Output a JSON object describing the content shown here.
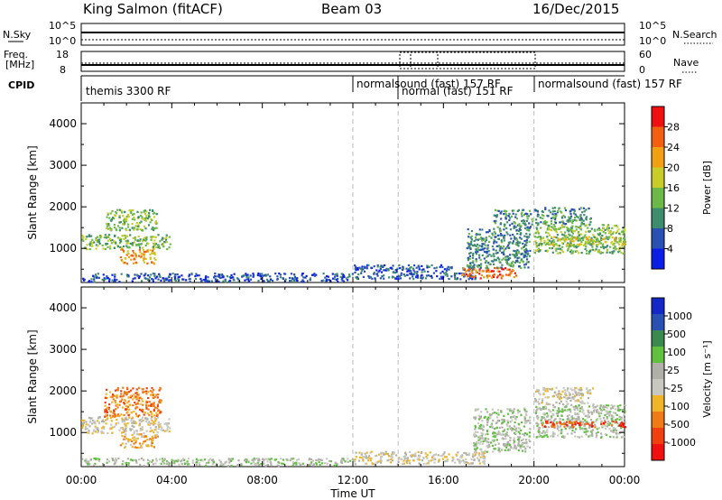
{
  "header": {
    "station": "King Salmon (fitACF)",
    "beam": "Beam 03",
    "date": "16/Dec/2015"
  },
  "top_panels": {
    "nsky_label": "N.Sky",
    "nsearch_label": "N.Search",
    "nsky_ticks": [
      "10^5",
      "10^0"
    ],
    "freq_label": "Freq.",
    "freq_unit": "[MHz]",
    "freq_ticks": [
      "18",
      "8"
    ],
    "nave_label": "Nave",
    "nave_ticks": [
      "60",
      "0"
    ],
    "cpid_label": "CPID",
    "cpid_segments": [
      {
        "label": "themis 3300 RF",
        "start_hour": 0
      },
      {
        "label": "normalsound (fast) 157 RF",
        "start_hour": 12
      },
      {
        "label": "normal (fast) 151 RF",
        "start_hour": 14
      },
      {
        "label": "normalsound (fast) 157 RF",
        "start_hour": 20
      }
    ]
  },
  "colors": {
    "power_scale": [
      "#0a1ee6",
      "#2a50b4",
      "#3e8c6e",
      "#6cb848",
      "#c8cc28",
      "#f0a010",
      "#f06010",
      "#f01010"
    ],
    "velocity_scale": [
      "#f01010",
      "#f04010",
      "#f07a14",
      "#f0b428",
      "#c8c8c0",
      "#b0b0a8",
      "#60c040",
      "#3a8a50",
      "#2a50b4",
      "#1428c8"
    ]
  },
  "chart_data": [
    {
      "type": "heatmap",
      "name": "power",
      "title": "",
      "ylabel": "Slant Range [km]",
      "xlabel": "",
      "xlim": [
        0,
        24
      ],
      "ylim": [
        180,
        4500
      ],
      "yticks": [
        "1000",
        "2000",
        "3000",
        "4000"
      ],
      "xticks": [
        "00:00",
        "04:00",
        "08:00",
        "12:00",
        "16:00",
        "20:00",
        "00:00"
      ],
      "colorbar_label": "Power [dB]",
      "colorbar_ticks": [
        "4",
        "8",
        "12",
        "16",
        "20",
        "24",
        "28"
      ],
      "colorbar_range": [
        0,
        30
      ],
      "dashed_lines_hours": [
        12,
        14,
        20
      ],
      "regions": [
        {
          "t0": 0.0,
          "t1": 3.9,
          "r0": 1000,
          "r1": 1350,
          "level": 3
        },
        {
          "t0": 1.0,
          "t1": 3.3,
          "r0": 1450,
          "r1": 1950,
          "level": 3
        },
        {
          "t0": 1.7,
          "t1": 3.3,
          "r0": 650,
          "r1": 1000,
          "level": 5
        },
        {
          "t0": 0.0,
          "t1": 12.0,
          "r0": 220,
          "r1": 420,
          "level": 1
        },
        {
          "t0": 12.0,
          "t1": 17.5,
          "r0": 280,
          "r1": 620,
          "level": 1
        },
        {
          "t0": 16.8,
          "t1": 19.2,
          "r0": 300,
          "r1": 560,
          "level": 6
        },
        {
          "t0": 17.0,
          "t1": 19.8,
          "r0": 550,
          "r1": 1500,
          "level": 2
        },
        {
          "t0": 18.2,
          "t1": 19.9,
          "r0": 1500,
          "r1": 1950,
          "level": 2
        },
        {
          "t0": 20.0,
          "t1": 24.0,
          "r0": 900,
          "r1": 1600,
          "level": 3
        },
        {
          "t0": 20.0,
          "t1": 22.5,
          "r0": 1600,
          "r1": 2000,
          "level": 2
        },
        {
          "t0": 20.5,
          "t1": 24.0,
          "r0": 1100,
          "r1": 1300,
          "level": 4
        }
      ]
    },
    {
      "type": "heatmap",
      "name": "velocity",
      "title": "",
      "ylabel": "Slant Range [km]",
      "xlabel": "Time UT",
      "xlim": [
        0,
        24
      ],
      "ylim": [
        180,
        4500
      ],
      "yticks": [
        "1000",
        "2000",
        "3000",
        "4000"
      ],
      "xticks": [
        "00:00",
        "04:00",
        "08:00",
        "12:00",
        "16:00",
        "20:00",
        "00:00"
      ],
      "colorbar_label": "Velocity [m s⁻¹]",
      "colorbar_ticks": [
        "-1000",
        "-500",
        "-100",
        "-25",
        "25",
        "100",
        "500",
        "1000"
      ],
      "dashed_lines_hours": [
        12,
        14,
        20
      ],
      "regions": [
        {
          "t0": 0.0,
          "t1": 3.9,
          "r0": 1000,
          "r1": 1400,
          "level": 4
        },
        {
          "t0": 1.0,
          "t1": 3.5,
          "r0": 1400,
          "r1": 2100,
          "level": 2
        },
        {
          "t0": 1.7,
          "t1": 3.4,
          "r0": 650,
          "r1": 1000,
          "level": 3
        },
        {
          "t0": 0.0,
          "t1": 12.0,
          "r0": 220,
          "r1": 400,
          "level": 5
        },
        {
          "t0": 12.0,
          "t1": 17.8,
          "r0": 260,
          "r1": 560,
          "level": 4
        },
        {
          "t0": 17.3,
          "t1": 19.8,
          "r0": 550,
          "r1": 1600,
          "level": 5
        },
        {
          "t0": 20.0,
          "t1": 24.0,
          "r0": 900,
          "r1": 1700,
          "level": 5
        },
        {
          "t0": 20.0,
          "t1": 22.6,
          "r0": 1700,
          "r1": 2100,
          "level": 4
        },
        {
          "t0": 20.3,
          "t1": 24.0,
          "r0": 1150,
          "r1": 1300,
          "level": 1
        }
      ]
    }
  ]
}
